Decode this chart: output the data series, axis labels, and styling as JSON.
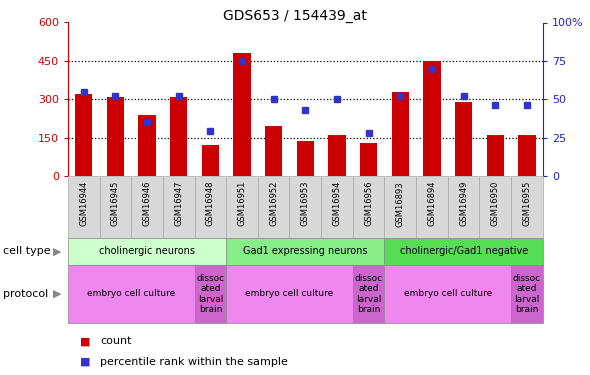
{
  "title": "GDS653 / 154439_at",
  "samples": [
    "GSM16944",
    "GSM16945",
    "GSM16946",
    "GSM16947",
    "GSM16948",
    "GSM16951",
    "GSM16952",
    "GSM16953",
    "GSM16954",
    "GSM16956",
    "GSM16893",
    "GSM16894",
    "GSM16949",
    "GSM16950",
    "GSM16955"
  ],
  "counts": [
    320,
    310,
    240,
    310,
    120,
    480,
    195,
    135,
    162,
    130,
    330,
    450,
    290,
    162,
    162
  ],
  "percentiles": [
    55,
    52,
    35,
    52,
    29,
    75,
    50,
    43,
    50,
    28,
    52,
    70,
    52,
    46,
    46
  ],
  "bar_color": "#cc0000",
  "dot_color": "#3333cc",
  "ylim_left": [
    0,
    600
  ],
  "ylim_right": [
    0,
    100
  ],
  "yticks_left": [
    0,
    150,
    300,
    450,
    600
  ],
  "yticks_right": [
    0,
    25,
    50,
    75,
    100
  ],
  "cell_type_groups": [
    {
      "label": "cholinergic neurons",
      "start": 0,
      "end": 5,
      "color": "#ccffcc"
    },
    {
      "label": "Gad1 expressing neurons",
      "start": 5,
      "end": 10,
      "color": "#88ee88"
    },
    {
      "label": "cholinergic/Gad1 negative",
      "start": 10,
      "end": 15,
      "color": "#55dd55"
    }
  ],
  "protocol_groups": [
    {
      "label": "embryo cell culture",
      "start": 0,
      "end": 4,
      "color": "#ee88ee"
    },
    {
      "label": "dissoc\nated\nlarval\nbrain",
      "start": 4,
      "end": 5,
      "color": "#cc66cc"
    },
    {
      "label": "embryo cell culture",
      "start": 5,
      "end": 9,
      "color": "#ee88ee"
    },
    {
      "label": "dissoc\nated\nlarval\nbrain",
      "start": 9,
      "end": 10,
      "color": "#cc66cc"
    },
    {
      "label": "embryo cell culture",
      "start": 10,
      "end": 14,
      "color": "#ee88ee"
    },
    {
      "label": "dissoc\nated\nlarval\nbrain",
      "start": 14,
      "end": 15,
      "color": "#cc66cc"
    }
  ],
  "legend_count_label": "count",
  "legend_pct_label": "percentile rank within the sample",
  "cell_type_row_label": "cell type",
  "protocol_row_label": "protocol",
  "tick_label_color_left": "#cc0000",
  "tick_label_color_right": "#2222cc",
  "xtick_bg": "#d8d8d8",
  "xtick_border": "#aaaaaa"
}
